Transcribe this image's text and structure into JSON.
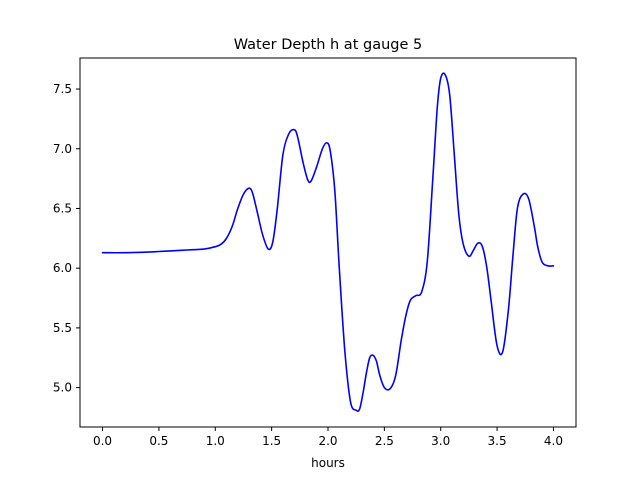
{
  "chart_data": {
    "type": "line",
    "title": "Water Depth h at gauge 5",
    "xlabel": "hours",
    "ylabel": "",
    "xlim": [
      -0.2,
      4.2
    ],
    "ylim": [
      4.67,
      7.76
    ],
    "xticks": [
      0.0,
      0.5,
      1.0,
      1.5,
      2.0,
      2.5,
      3.0,
      3.5,
      4.0
    ],
    "xtick_labels": [
      "0.0",
      "0.5",
      "1.0",
      "1.5",
      "2.0",
      "2.5",
      "3.0",
      "3.5",
      "4.0"
    ],
    "yticks": [
      5.0,
      5.5,
      6.0,
      6.5,
      7.0,
      7.5
    ],
    "ytick_labels": [
      "5.0",
      "5.5",
      "6.0",
      "6.5",
      "7.0",
      "7.5"
    ],
    "grid": false,
    "legend": "none",
    "series": [
      {
        "color": "#0000ff",
        "x": [
          0.0,
          0.2,
          0.4,
          0.5,
          0.6,
          0.7,
          0.8,
          0.9,
          1.0,
          1.05,
          1.1,
          1.15,
          1.2,
          1.25,
          1.3,
          1.33,
          1.37,
          1.42,
          1.47,
          1.51,
          1.55,
          1.6,
          1.65,
          1.7,
          1.73,
          1.78,
          1.82,
          1.85,
          1.9,
          1.95,
          1.99,
          2.02,
          2.06,
          2.1,
          2.15,
          2.2,
          2.25,
          2.28,
          2.31,
          2.34,
          2.37,
          2.4,
          2.43,
          2.46,
          2.5,
          2.55,
          2.6,
          2.65,
          2.69,
          2.73,
          2.78,
          2.83,
          2.88,
          2.93,
          2.97,
          3.0,
          3.04,
          3.08,
          3.12,
          3.16,
          3.2,
          3.25,
          3.29,
          3.33,
          3.37,
          3.41,
          3.45,
          3.5,
          3.55,
          3.6,
          3.64,
          3.68,
          3.73,
          3.78,
          3.83,
          3.86,
          3.9,
          3.95,
          4.0
        ],
        "y": [
          6.13,
          6.13,
          6.135,
          6.14,
          6.145,
          6.15,
          6.155,
          6.16,
          6.18,
          6.2,
          6.25,
          6.35,
          6.5,
          6.62,
          6.67,
          6.63,
          6.48,
          6.28,
          6.16,
          6.22,
          6.5,
          6.95,
          7.12,
          7.16,
          7.1,
          6.88,
          6.74,
          6.73,
          6.85,
          7.0,
          7.05,
          6.98,
          6.65,
          6.0,
          5.3,
          4.88,
          4.81,
          4.82,
          4.95,
          5.12,
          5.25,
          5.27,
          5.22,
          5.1,
          5.0,
          4.99,
          5.1,
          5.4,
          5.6,
          5.73,
          5.77,
          5.8,
          6.05,
          6.75,
          7.35,
          7.59,
          7.62,
          7.45,
          6.95,
          6.45,
          6.2,
          6.1,
          6.15,
          6.21,
          6.18,
          6.0,
          5.7,
          5.35,
          5.3,
          5.65,
          6.1,
          6.5,
          6.62,
          6.58,
          6.35,
          6.18,
          6.05,
          6.02,
          6.02
        ]
      }
    ]
  }
}
